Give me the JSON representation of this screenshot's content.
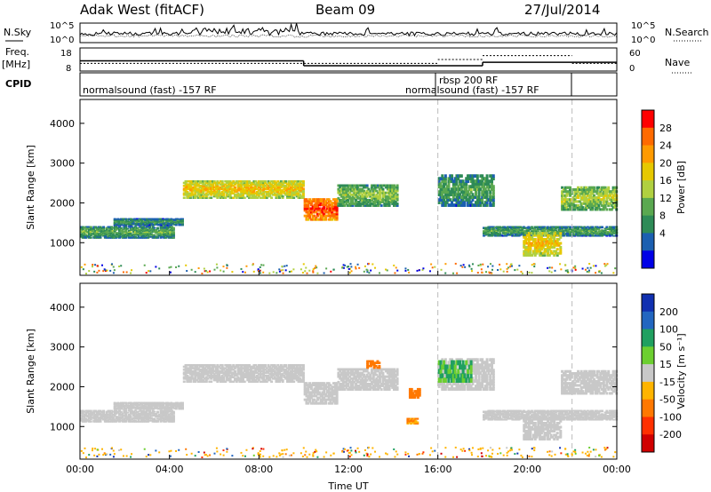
{
  "header": {
    "station": "Adak West (fitACF)",
    "beam": "Beam 09",
    "date": "27/Jul/2014"
  },
  "noise_panel": {
    "left_label": "N.Sky",
    "right_label": "N.Search",
    "left_ticks": [
      "10^5",
      "10^0"
    ],
    "right_ticks": [
      "10^5",
      "10^0"
    ]
  },
  "freq_panel": {
    "left_label_1": "Freq.",
    "left_label_2": "[MHz]",
    "right_label": "Nave",
    "left_ticks": [
      "18",
      "8"
    ],
    "right_ticks": [
      "60",
      "0"
    ],
    "freq_steps": [
      {
        "t0": 0,
        "t1": 10,
        "mhz": 12.4
      },
      {
        "t0": 10,
        "t1": 18,
        "mhz": 10.3
      },
      {
        "t0": 18,
        "t1": 24,
        "mhz": 11.8
      }
    ],
    "nave_steps": [
      {
        "t0": 0,
        "t1": 16,
        "nave": 20
      },
      {
        "t0": 16,
        "t1": 18,
        "nave": 30
      },
      {
        "t0": 18,
        "t1": 22,
        "nave": 40
      },
      {
        "t0": 22,
        "t1": 24,
        "nave": 20
      }
    ]
  },
  "cpid_panel": {
    "label": "CPID",
    "programs": [
      {
        "text": "normalsound (fast) -157 RF",
        "t": 0
      },
      {
        "text": "rbsp 200 RF",
        "t": 16
      },
      {
        "text": "normalsound (fast) -157 RF",
        "t": 14.5
      }
    ]
  },
  "power_panel": {
    "ylabel": "Slant Range [km]",
    "cbar_label": "Power [dB]",
    "cbar_ticks": [
      "28",
      "24",
      "20",
      "16",
      "12",
      "8",
      "4"
    ],
    "cbar_colors": [
      "#ff0000",
      "#ff6a00",
      "#ff9a00",
      "#e6c800",
      "#b0d040",
      "#5aa850",
      "#2e8b57",
      "#1b5fb0",
      "#0000e6"
    ]
  },
  "velocity_panel": {
    "ylabel": "Slant Range [km]",
    "cbar_label": "Velocity [m s⁻¹]",
    "cbar_ticks": [
      "200",
      "100",
      "50",
      "15",
      "-15",
      "-50",
      "-100",
      "-200"
    ],
    "cbar_colors": [
      "#1030b0",
      "#2266c0",
      "#20a060",
      "#6ccf30",
      "#c8c8c8",
      "#ffb400",
      "#ff7800",
      "#ff3000",
      "#d00000"
    ]
  },
  "chart_data": {
    "type": "heatmap",
    "title": "Adak West (fitACF)  Beam 09  27/Jul/2014",
    "xlabel": "Time UT",
    "ylabel": "Slant Range [km]",
    "x_ticks": [
      "00:00",
      "04:00",
      "08:00",
      "12:00",
      "16:00",
      "20:00",
      "00:00"
    ],
    "y_ticks": [
      "1000",
      "2000",
      "3000",
      "4000"
    ],
    "xlim_hours": [
      0,
      24
    ],
    "ylim_km": [
      180,
      4600
    ],
    "scatter_bands": [
      {
        "t0": 0,
        "t1": 4.2,
        "r0": 1100,
        "r1": 1400,
        "power": 10
      },
      {
        "t0": 1.5,
        "t1": 4.6,
        "r0": 1420,
        "r1": 1600,
        "power": 8
      },
      {
        "t0": 4.6,
        "t1": 10,
        "r0": 2100,
        "r1": 2550,
        "power": 18
      },
      {
        "t0": 10,
        "t1": 11.5,
        "r0": 1550,
        "r1": 2100,
        "power": 26
      },
      {
        "t0": 11.5,
        "t1": 14.2,
        "r0": 1900,
        "r1": 2450,
        "power": 12
      },
      {
        "t0": 16,
        "t1": 18.5,
        "r0": 1900,
        "r1": 2700,
        "power": 9
      },
      {
        "t0": 18,
        "t1": 24,
        "r0": 1150,
        "r1": 1400,
        "power": 9
      },
      {
        "t0": 19.8,
        "t1": 21.5,
        "r0": 650,
        "r1": 1250,
        "power": 18
      },
      {
        "t0": 21.5,
        "t1": 24,
        "r0": 1800,
        "r1": 2400,
        "power": 14
      }
    ],
    "velocity_patches": [
      {
        "t0": 12.8,
        "t1": 13.4,
        "r0": 2450,
        "r1": 2650,
        "velocity": -60
      },
      {
        "t0": 14.7,
        "t1": 15.2,
        "r0": 1700,
        "r1": 1950,
        "velocity": -70
      },
      {
        "t0": 14.6,
        "t1": 15.1,
        "r0": 1050,
        "r1": 1200,
        "velocity": -50
      },
      {
        "t0": 16,
        "t1": 17.5,
        "r0": 2100,
        "r1": 2650,
        "velocity": 30
      }
    ]
  }
}
